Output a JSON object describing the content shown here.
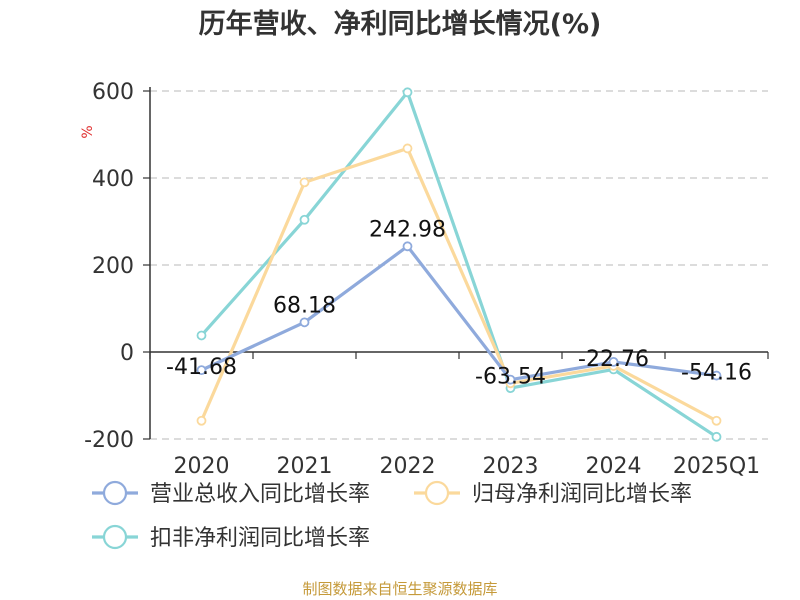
{
  "chart_data": {
    "type": "line",
    "title": "历年营收、净利同比增长情况(%)",
    "ylabel": "%",
    "categories": [
      "2020",
      "2021",
      "2022",
      "2023",
      "2024",
      "2025Q1"
    ],
    "ylim": [
      -200,
      600
    ],
    "yticks": [
      "600",
      "400",
      "200",
      "0",
      "-200"
    ],
    "grid": true,
    "legend_position": "bottom",
    "series": [
      {
        "name": "营业总收入同比增长率",
        "values": [
          -41.68,
          68.18,
          242.98,
          -63.54,
          -22.76,
          -54.16
        ],
        "labels": [
          "-41.68",
          "68.18",
          "242.98",
          "-63.54",
          "-22.76",
          "-54.16"
        ],
        "color": "#8faadc"
      },
      {
        "name": "归母净利润同比增长率",
        "values": [
          -158,
          390,
          468,
          -72,
          -32,
          -158
        ],
        "color": "#fbd99c"
      },
      {
        "name": "扣非净利润同比增长率",
        "values": [
          38,
          304,
          597,
          -83,
          -40,
          -195
        ],
        "color": "#88d5d6"
      }
    ],
    "source": "制图数据来自恒生聚源数据库"
  }
}
